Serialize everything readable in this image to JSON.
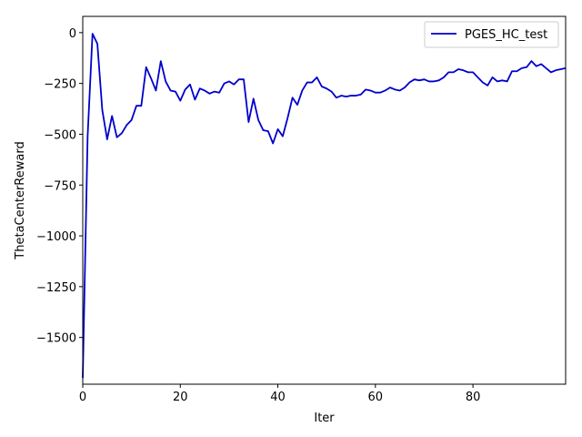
{
  "chart_data": {
    "type": "line",
    "title": "",
    "xlabel": "Iter",
    "ylabel": "ThetaCenterReward",
    "xlim": [
      0,
      99
    ],
    "ylim": [
      -1730,
      80
    ],
    "xticks": [
      0,
      20,
      40,
      60,
      80
    ],
    "yticks": [
      0,
      -250,
      -500,
      -750,
      -1000,
      -1250,
      -1500
    ],
    "tick_labels_x": [
      "0",
      "20",
      "40",
      "60",
      "80"
    ],
    "tick_labels_y": [
      "0",
      "−250",
      "−500",
      "−750",
      "−1000",
      "−1250",
      "−1500"
    ],
    "grid": false,
    "legend_position": "top-right",
    "series": [
      {
        "name": "PGES_HC_test",
        "color": "#0000cc",
        "x": [
          0,
          1,
          2,
          3,
          4,
          5,
          6,
          7,
          8,
          9,
          10,
          11,
          12,
          13,
          14,
          15,
          16,
          17,
          18,
          19,
          20,
          21,
          22,
          23,
          24,
          25,
          26,
          27,
          28,
          29,
          30,
          31,
          32,
          33,
          34,
          35,
          36,
          37,
          38,
          39,
          40,
          41,
          42,
          43,
          44,
          45,
          46,
          47,
          48,
          49,
          50,
          51,
          52,
          53,
          54,
          55,
          56,
          57,
          58,
          59,
          60,
          61,
          62,
          63,
          64,
          65,
          66,
          67,
          68,
          69,
          70,
          71,
          72,
          73,
          74,
          75,
          76,
          77,
          78,
          79,
          80,
          81,
          82,
          83,
          84,
          85,
          86,
          87,
          88,
          89,
          90,
          91,
          92,
          93,
          94,
          95,
          96,
          97,
          98,
          99
        ],
        "values": [
          -1700,
          -510,
          -5,
          -55,
          -380,
          -525,
          -410,
          -515,
          -495,
          -455,
          -430,
          -360,
          -360,
          -170,
          -225,
          -285,
          -140,
          -240,
          -285,
          -290,
          -335,
          -280,
          -255,
          -330,
          -275,
          -285,
          -300,
          -290,
          -295,
          -250,
          -240,
          -255,
          -230,
          -230,
          -440,
          -325,
          -430,
          -480,
          -485,
          -545,
          -475,
          -510,
          -420,
          -320,
          -355,
          -285,
          -245,
          -245,
          -220,
          -265,
          -275,
          -290,
          -320,
          -310,
          -315,
          -310,
          -310,
          -305,
          -280,
          -285,
          -295,
          -295,
          -285,
          -270,
          -280,
          -285,
          -270,
          -245,
          -230,
          -235,
          -230,
          -240,
          -240,
          -235,
          -220,
          -195,
          -195,
          -180,
          -185,
          -195,
          -195,
          -220,
          -245,
          -260,
          -220,
          -240,
          -235,
          -240,
          -190,
          -190,
          -175,
          -170,
          -140,
          -165,
          -155,
          -175,
          -195,
          -185,
          -180,
          -175
        ]
      }
    ]
  }
}
